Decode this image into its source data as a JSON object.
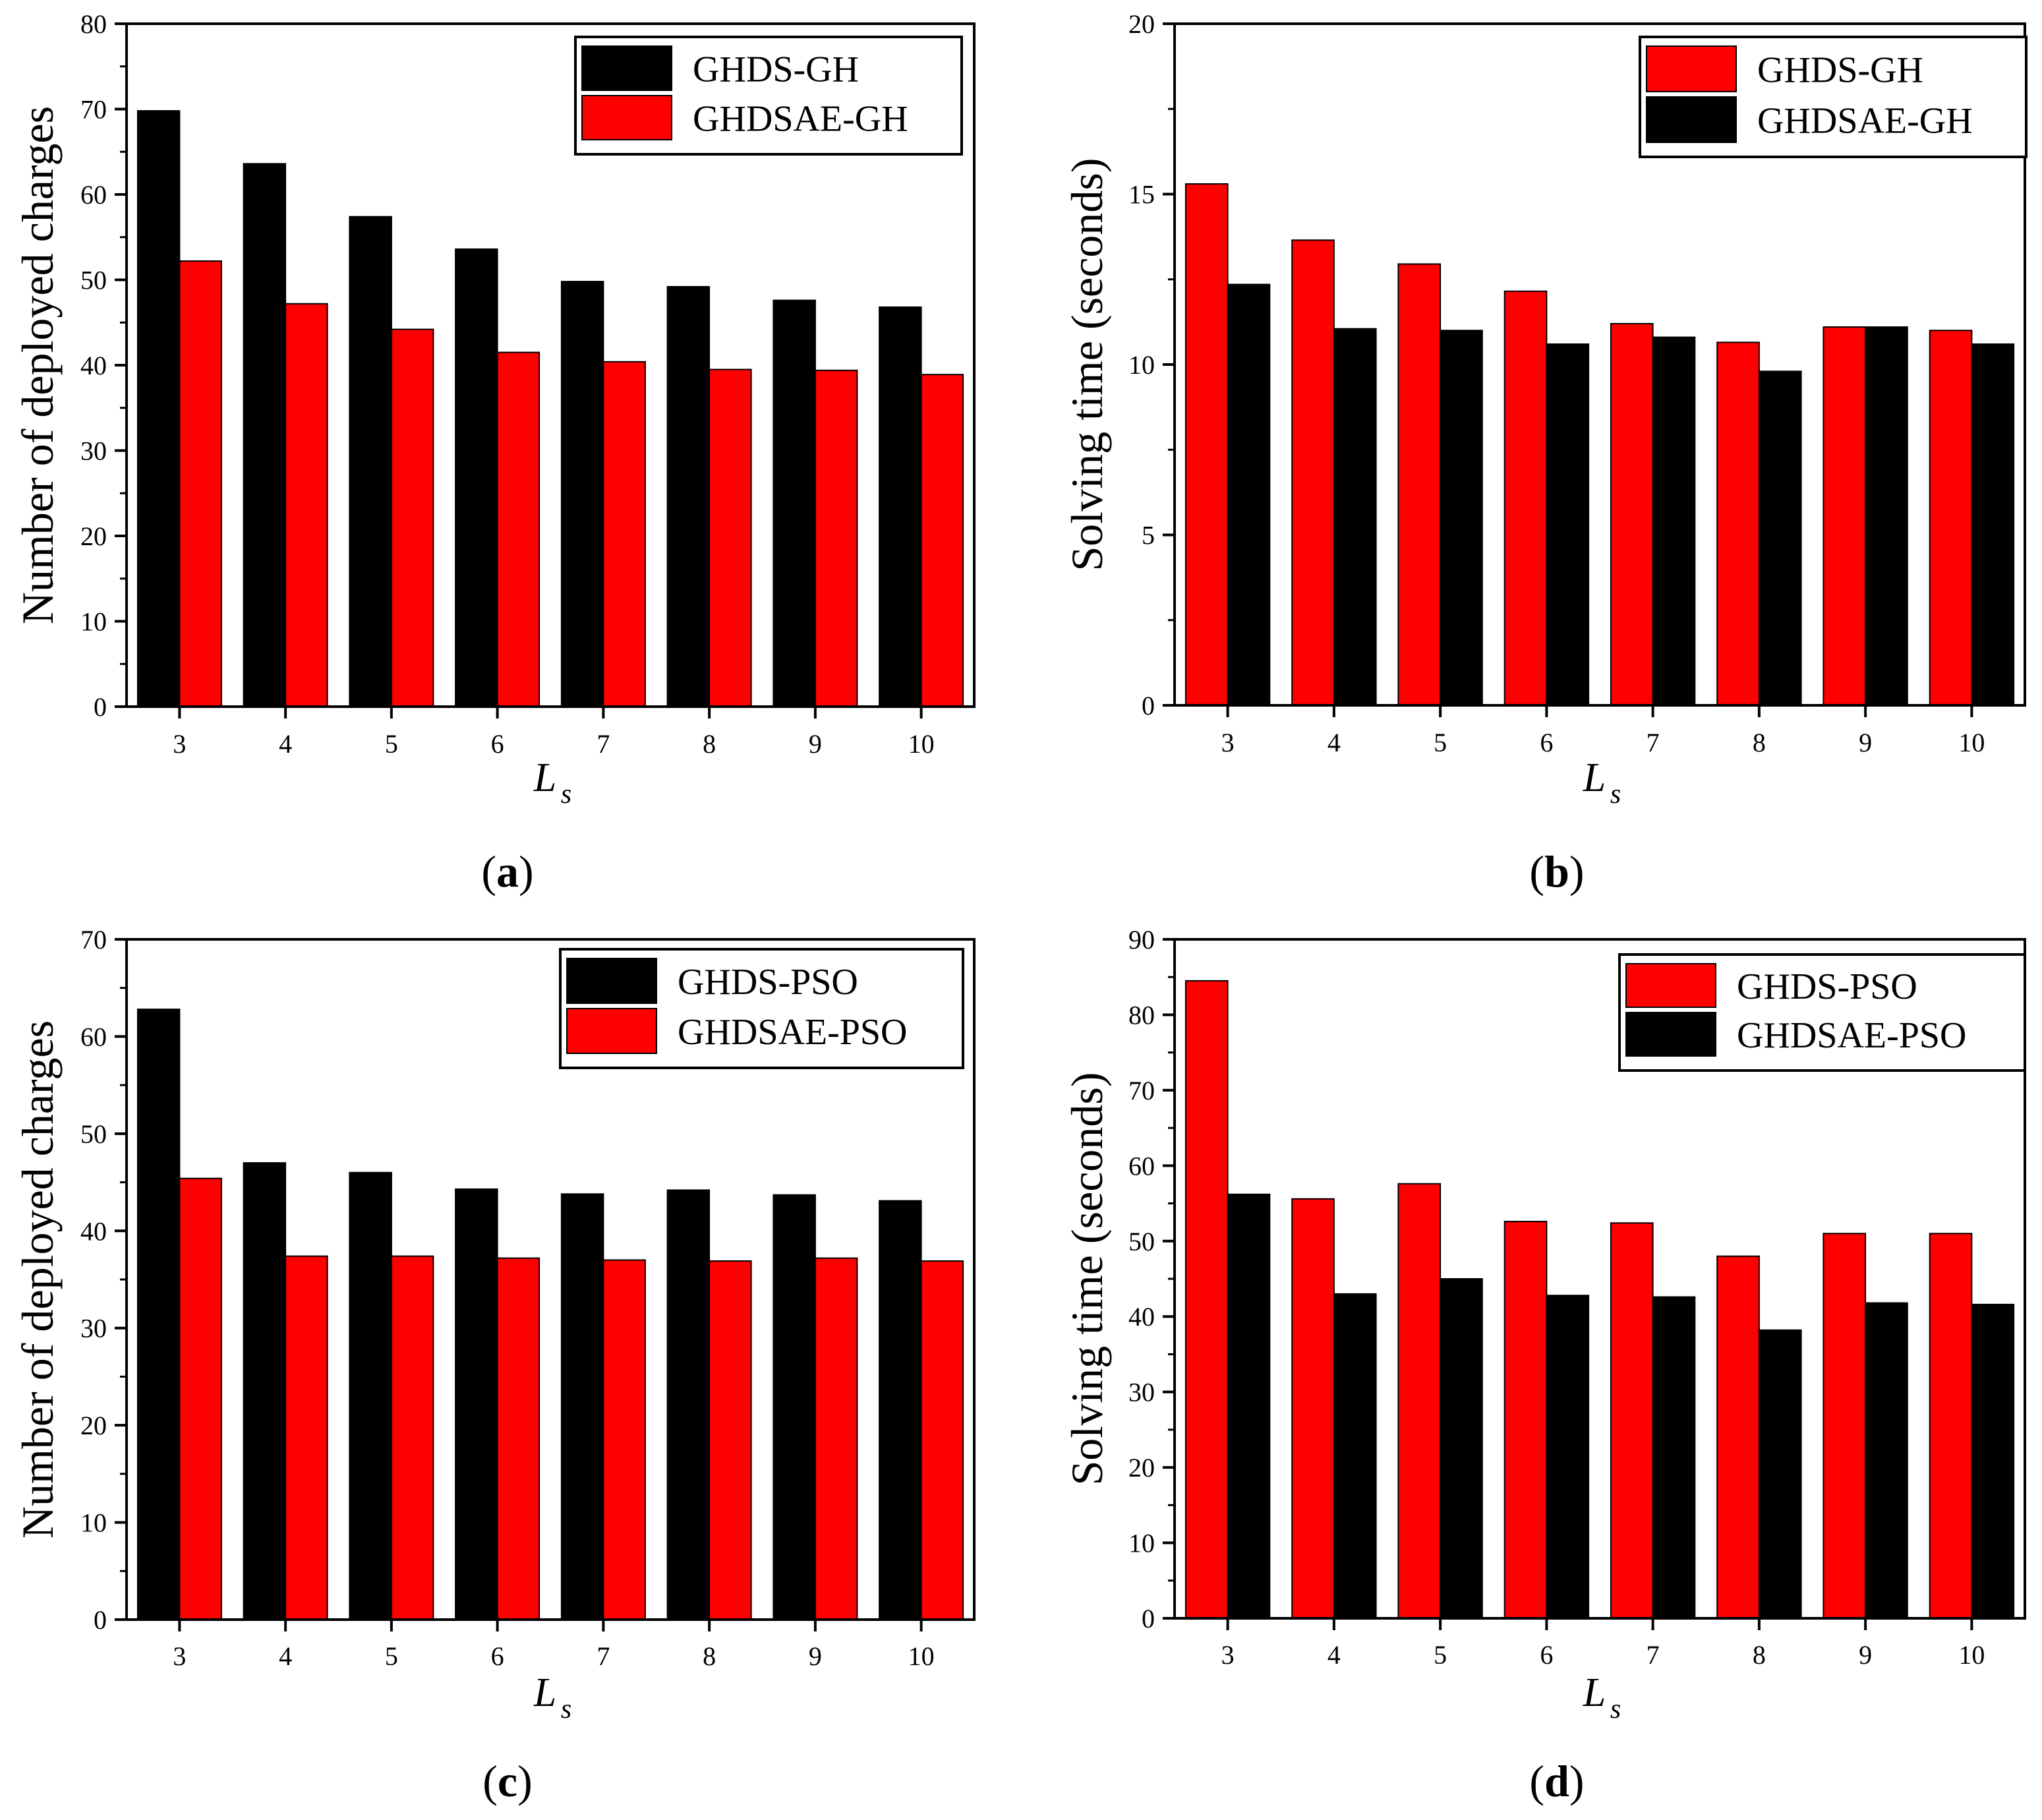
{
  "colors": {
    "black": "#000000",
    "red": "#ff0000",
    "axis": "#000000"
  },
  "chart_data": [
    {
      "type": "bar",
      "panel_label": "a",
      "ylabel": "Number of deployed charges",
      "xlabel_main": "L",
      "xlabel_sub": "s",
      "categories": [
        "3",
        "4",
        "5",
        "6",
        "7",
        "8",
        "9",
        "10"
      ],
      "ylim": [
        0,
        80
      ],
      "yticks": [
        "0",
        "10",
        "20",
        "30",
        "40",
        "50",
        "60",
        "70",
        "80"
      ],
      "legend_position": "top-right",
      "series": [
        {
          "name": "GHDS-GH",
          "color": "#000000",
          "values": [
            69.8,
            63.6,
            57.4,
            53.6,
            49.8,
            49.2,
            47.6,
            46.8
          ]
        },
        {
          "name": "GHDSAE-GH",
          "color": "#ff0000",
          "values": [
            52.2,
            47.2,
            44.2,
            41.5,
            40.4,
            39.5,
            39.4,
            38.9
          ]
        }
      ]
    },
    {
      "type": "bar",
      "panel_label": "b",
      "ylabel": "Solving time (seconds)",
      "xlabel_main": "L",
      "xlabel_sub": "s",
      "categories": [
        "3",
        "4",
        "5",
        "6",
        "7",
        "8",
        "9",
        "10"
      ],
      "ylim": [
        0,
        20
      ],
      "yticks": [
        "0",
        "5",
        "10",
        "15",
        "20"
      ],
      "legend_position": "top-right",
      "series": [
        {
          "name": "GHDS-GH",
          "color": "#ff0000",
          "values": [
            15.3,
            13.65,
            12.95,
            12.15,
            11.2,
            10.65,
            11.1,
            11.0
          ]
        },
        {
          "name": "GHDSAE-GH",
          "color": "#000000",
          "values": [
            12.35,
            11.05,
            11.0,
            10.6,
            10.8,
            9.8,
            11.1,
            10.6
          ]
        }
      ]
    },
    {
      "type": "bar",
      "panel_label": "c",
      "ylabel": "Number of deployed charges",
      "xlabel_main": "L",
      "xlabel_sub": "s",
      "categories": [
        "3",
        "4",
        "5",
        "6",
        "7",
        "8",
        "9",
        "10"
      ],
      "ylim": [
        0,
        70
      ],
      "yticks": [
        "0",
        "10",
        "20",
        "30",
        "40",
        "50",
        "60",
        "70"
      ],
      "legend_position": "top-right",
      "series": [
        {
          "name": "GHDS-PSO",
          "color": "#000000",
          "values": [
            62.8,
            47.0,
            46.0,
            44.3,
            43.8,
            44.2,
            43.7,
            43.1
          ]
        },
        {
          "name": "GHDSAE-PSO",
          "color": "#ff0000",
          "values": [
            45.4,
            37.4,
            37.4,
            37.2,
            37.0,
            36.9,
            37.2,
            36.9
          ]
        }
      ]
    },
    {
      "type": "bar",
      "panel_label": "d",
      "ylabel": "Solving time (seconds)",
      "xlabel_main": "L",
      "xlabel_sub": "s",
      "categories": [
        "3",
        "4",
        "5",
        "6",
        "7",
        "8",
        "9",
        "10"
      ],
      "ylim": [
        0,
        90
      ],
      "yticks": [
        "0",
        "10",
        "20",
        "30",
        "40",
        "50",
        "60",
        "70",
        "80",
        "90"
      ],
      "legend_position": "top-right",
      "series": [
        {
          "name": "GHDS-PSO",
          "color": "#ff0000",
          "values": [
            84.5,
            55.6,
            57.6,
            52.6,
            52.4,
            48.0,
            51.0,
            51.0
          ]
        },
        {
          "name": "GHDSAE-PSO",
          "color": "#000000",
          "values": [
            56.2,
            43.0,
            45.0,
            42.8,
            42.6,
            38.2,
            41.8,
            41.6
          ]
        }
      ]
    }
  ]
}
